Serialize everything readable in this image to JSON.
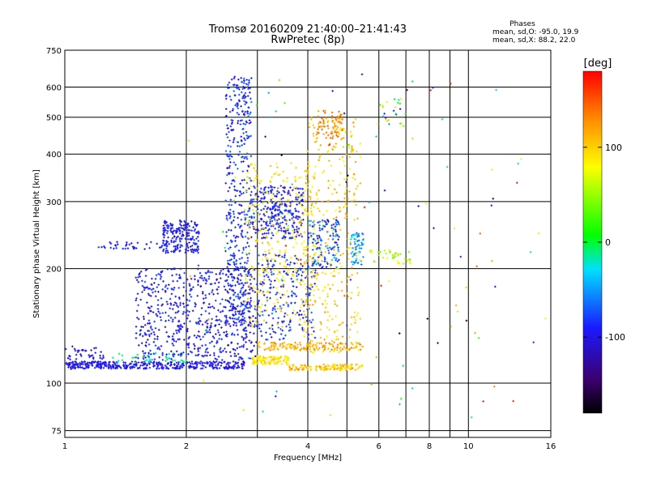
{
  "chart_data": {
    "type": "scatter",
    "title": "Tromsø 20160209 21:40:00–21:41:43",
    "subtitle": "RwPretec (8p)",
    "xlabel": "Frequency [MHz]",
    "ylabel": "Stationary phase Virtual Height [km]",
    "x_scale": "log",
    "y_scale": "log",
    "xlim": [
      1,
      16
    ],
    "ylim": [
      72,
      750
    ],
    "x_ticks": [
      1,
      2,
      4,
      6,
      8,
      10,
      16
    ],
    "x_tick_labels": [
      "1",
      "2",
      "4",
      "6",
      "8",
      "10",
      "16"
    ],
    "x_minor": [
      3,
      5,
      7,
      9
    ],
    "y_ticks": [
      75,
      100,
      200,
      300,
      400,
      500,
      600,
      750
    ],
    "y_tick_labels": [
      "75",
      "100",
      "200",
      "300",
      "400",
      "500",
      "600",
      "750"
    ],
    "grid": true,
    "stats": {
      "title": "Phases",
      "line_o": "mean, sd,O: -95.0, 19.9",
      "line_x": "mean, sd,X: 88.2, 22.0"
    },
    "colorbar": {
      "label": "[deg]",
      "min": -180,
      "max": 180,
      "ticks": [
        100,
        0,
        -100
      ],
      "tick_labels": [
        "100",
        "0",
        "-100"
      ]
    },
    "series_clusters": [
      {
        "x": [
          1.0,
          2.8
        ],
        "y": [
          109,
          114
        ],
        "phase": [
          -110,
          -85
        ],
        "count": 380
      },
      {
        "x": [
          1.3,
          2.0
        ],
        "y": [
          113,
          120
        ],
        "phase": [
          -45,
          10
        ],
        "count": 40
      },
      {
        "x": [
          1.0,
          1.25
        ],
        "y": [
          112,
          125
        ],
        "phase": [
          -110,
          -90
        ],
        "count": 50
      },
      {
        "x": [
          2.9,
          3.6
        ],
        "y": [
          112,
          118
        ],
        "phase": [
          70,
          110
        ],
        "count": 110
      },
      {
        "x": [
          3.6,
          5.5
        ],
        "y": [
          108,
          112
        ],
        "phase": [
          80,
          130
        ],
        "count": 130
      },
      {
        "x": [
          3.0,
          5.5
        ],
        "y": [
          122,
          128
        ],
        "phase": [
          95,
          140
        ],
        "count": 140
      },
      {
        "x": [
          1.5,
          3.0
        ],
        "y": [
          115,
          200
        ],
        "phase": [
          -115,
          -75
        ],
        "count": 620
      },
      {
        "x": [
          1.75,
          2.15
        ],
        "y": [
          220,
          268
        ],
        "phase": [
          -115,
          -75
        ],
        "count": 200
      },
      {
        "x": [
          1.2,
          1.8
        ],
        "y": [
          225,
          235
        ],
        "phase": [
          -100,
          -80
        ],
        "count": 45
      },
      {
        "x": [
          2.5,
          2.9
        ],
        "y": [
          130,
          640
        ],
        "phase": [
          -115,
          -60
        ],
        "count": 460
      },
      {
        "x": [
          2.9,
          3.9
        ],
        "y": [
          240,
          330
        ],
        "phase": [
          -110,
          -70
        ],
        "count": 300
      },
      {
        "x": [
          3.0,
          4.2
        ],
        "y": [
          130,
          220
        ],
        "phase": [
          -110,
          -60
        ],
        "count": 220
      },
      {
        "x": [
          2.8,
          4.2
        ],
        "y": [
          140,
          380
        ],
        "phase": [
          70,
          115
        ],
        "count": 320
      },
      {
        "x": [
          3.9,
          5.4
        ],
        "y": [
          120,
          500
        ],
        "phase": [
          80,
          125
        ],
        "count": 360
      },
      {
        "x": [
          4.2,
          4.9
        ],
        "y": [
          440,
          520
        ],
        "phase": [
          110,
          150
        ],
        "count": 70
      },
      {
        "x": [
          4.0,
          4.8
        ],
        "y": [
          200,
          270
        ],
        "phase": [
          -110,
          -40
        ],
        "count": 130
      },
      {
        "x": [
          5.1,
          5.5
        ],
        "y": [
          205,
          250
        ],
        "phase": [
          -70,
          -30
        ],
        "count": 60
      },
      {
        "x": [
          5.7,
          7.2
        ],
        "y": [
          205,
          225
        ],
        "phase": [
          30,
          90
        ],
        "count": 40
      },
      {
        "x": [
          6.0,
          7.0
        ],
        "y": [
          470,
          560
        ],
        "phase": [
          -100,
          120
        ],
        "count": 25
      },
      {
        "x": [
          2.0,
          16.0
        ],
        "y": [
          80,
          650
        ],
        "phase": [
          -180,
          180
        ],
        "count": 110
      }
    ]
  }
}
